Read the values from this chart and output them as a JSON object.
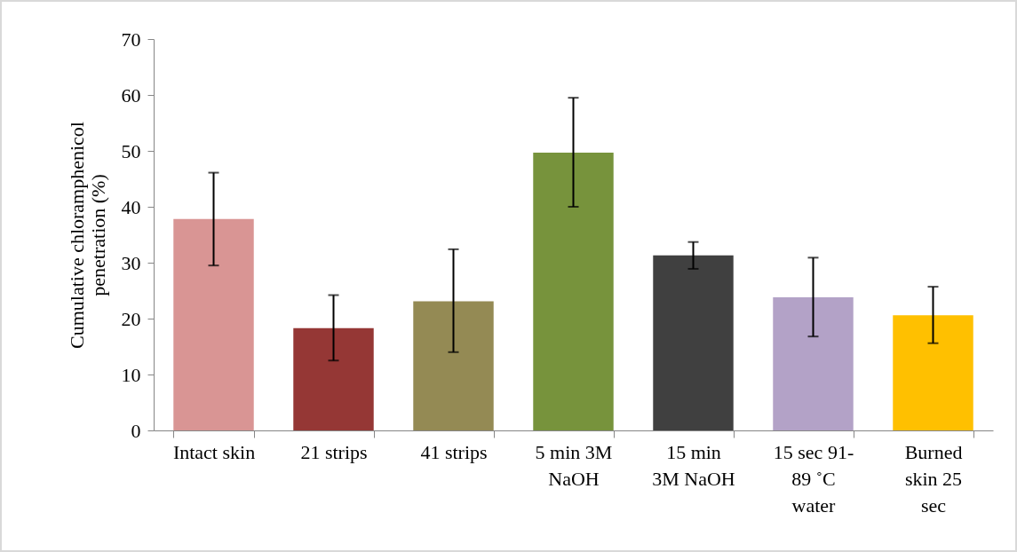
{
  "chart_data": {
    "type": "bar",
    "ylabel": "Cumulative chloramphenicol penetration (%)",
    "categories": [
      "Intact skin",
      "21 strips",
      "41 strips",
      "5 min 3M NaOH",
      "15 min 3M NaOH",
      "15 sec 91-89 ˚C water",
      "Burned skin 25 sec"
    ],
    "values": [
      37.8,
      18.3,
      23.1,
      49.7,
      31.3,
      23.8,
      20.6
    ],
    "colors": [
      "#d99594",
      "#953735",
      "#948a54",
      "#77933c",
      "#404040",
      "#b3a2c7",
      "#ffc000"
    ],
    "errors": [
      [
        29.5,
        46.1
      ],
      [
        12.5,
        24.2
      ],
      [
        14.0,
        32.4
      ],
      [
        40.0,
        59.5
      ],
      [
        28.9,
        33.7
      ],
      [
        16.8,
        30.9
      ],
      [
        15.6,
        25.7
      ]
    ],
    "ylim": [
      0,
      70
    ],
    "yticks": [
      0,
      10,
      20,
      30,
      40,
      50,
      60,
      70
    ],
    "grid": false
  }
}
